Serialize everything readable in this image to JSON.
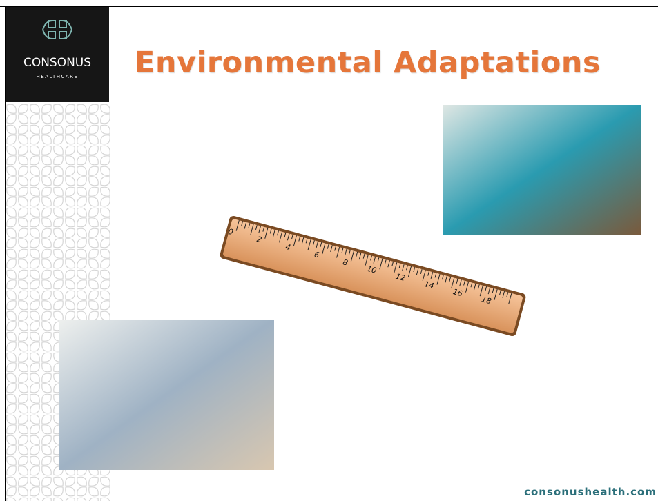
{
  "logo": {
    "name": "CONSONUS",
    "tagline": "HEALTHCARE"
  },
  "title": "Environmental Adaptations",
  "ruler": {
    "labels": [
      "0",
      "2",
      "4",
      "6",
      "8",
      "10",
      "12",
      "14",
      "16",
      "18"
    ]
  },
  "footer": "consonushealth.com"
}
